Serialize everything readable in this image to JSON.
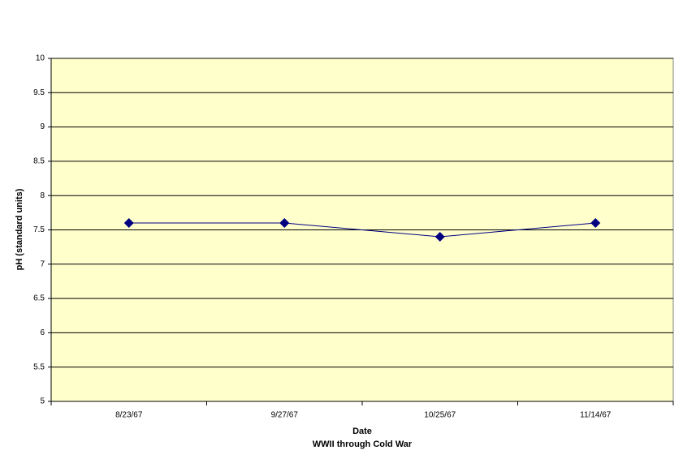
{
  "chart_data": {
    "type": "line",
    "categories": [
      "8/23/67",
      "9/27/67",
      "10/25/67",
      "11/14/67"
    ],
    "series": [
      {
        "name": "pH",
        "color": "#000080",
        "values": [
          7.6,
          7.6,
          7.4,
          7.6
        ]
      }
    ],
    "ylabel": "pH (standard units)",
    "xlabel": "Date",
    "xlabel_sub": "WWII through Cold War",
    "ylim": [
      5,
      10
    ],
    "yticks": [
      5,
      5.5,
      6,
      6.5,
      7,
      7.5,
      8,
      8.5,
      9,
      9.5,
      10
    ],
    "grid": true,
    "background": "#ffffcc"
  }
}
